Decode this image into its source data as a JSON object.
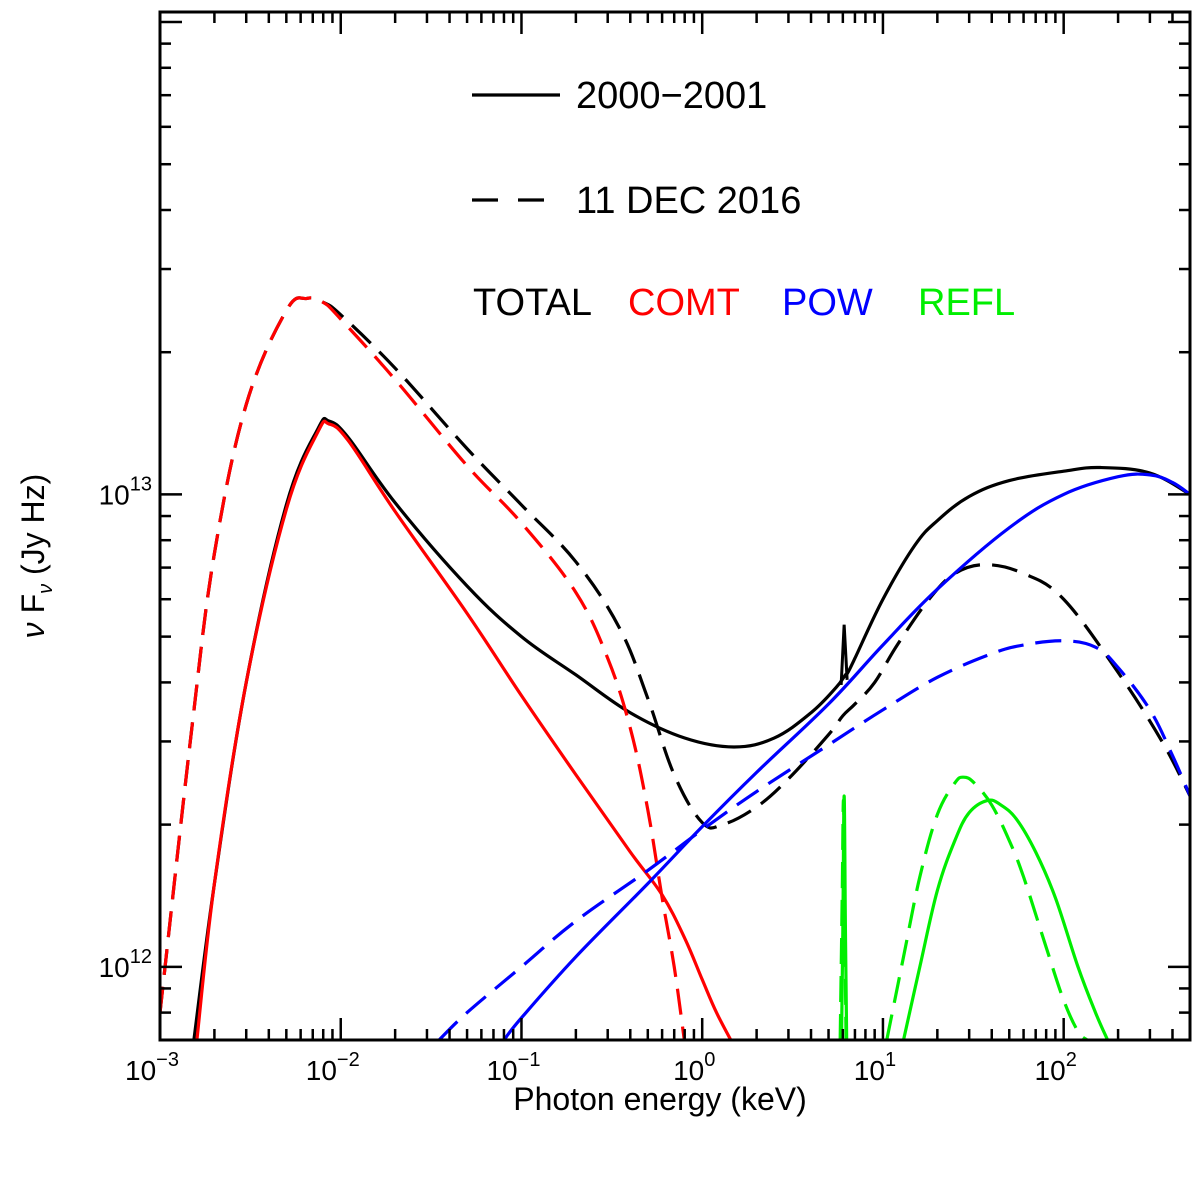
{
  "chart_data": {
    "type": "line",
    "title": "",
    "xlabel": "Photon energy (keV)",
    "ylabel": "ν F_ν (Jy Hz)",
    "ylabel_parts": {
      "nu": "ν",
      "F": "F",
      "sub": "ν",
      "units": "(Jy Hz)"
    },
    "xscale": "log",
    "yscale": "log",
    "xlim": [
      0.001,
      500
    ],
    "ylim": [
      700000000000.0,
      105000000000000.0
    ],
    "x_ticks": [
      {
        "value": 0.001,
        "base": "10",
        "exp": "−3"
      },
      {
        "value": 0.01,
        "base": "10",
        "exp": "−2"
      },
      {
        "value": 0.1,
        "base": "10",
        "exp": "−1"
      },
      {
        "value": 1,
        "base": "10",
        "exp": "0"
      },
      {
        "value": 10,
        "base": "10",
        "exp": "1"
      },
      {
        "value": 100,
        "base": "10",
        "exp": "2"
      }
    ],
    "y_ticks": [
      {
        "value": 1000000000000.0,
        "base": "10",
        "exp": "12"
      },
      {
        "value": 10000000000000.0,
        "base": "10",
        "exp": "13"
      }
    ],
    "legend": {
      "line_styles": [
        {
          "label": "2000−2001",
          "style": "solid"
        },
        {
          "label": "11 DEC 2016",
          "style": "dashed"
        }
      ],
      "components": [
        {
          "label": "TOTAL",
          "color": "#000000"
        },
        {
          "label": "COMT",
          "color": "#ff0000"
        },
        {
          "label": "POW",
          "color": "#0000ff"
        },
        {
          "label": "REFL",
          "color": "#00ee00"
        }
      ]
    },
    "series": [
      {
        "name": "TOTAL 2000−2001",
        "color": "#000000",
        "style": "solid",
        "x": [
          0.00154,
          0.002,
          0.003,
          0.005,
          0.0075,
          0.0086,
          0.011,
          0.02,
          0.05,
          0.1,
          0.2,
          0.4,
          0.8,
          1.5,
          2.5,
          4,
          5.5,
          6.2,
          6.4,
          7,
          10,
          15,
          20,
          30,
          50,
          100,
          160,
          300,
          500
        ],
        "y": [
          700000000000.0,
          1500000000000.0,
          4000000000000.0,
          9500000000000.0,
          13800000000000.0,
          14300000000000.0,
          13200000000000.0,
          9600000000000.0,
          6400000000000.0,
          5000000000000.0,
          4150000000000.0,
          3450000000000.0,
          3050000000000.0,
          2920000000000.0,
          3050000000000.0,
          3450000000000.0,
          3900000000000.0,
          4150000000000.0,
          4200000000000.0,
          4500000000000.0,
          6000000000000.0,
          7800000000000.0,
          8800000000000.0,
          9900000000000.0,
          10700000000000.0,
          11200000000000.0,
          11400000000000.0,
          11100000000000.0,
          10000000000000.0
        ]
      },
      {
        "name": "TOTAL 11 DEC 2016",
        "color": "#000000",
        "style": "dashed",
        "x": [
          0.001,
          0.0015,
          0.002,
          0.003,
          0.005,
          0.0065,
          0.008,
          0.01,
          0.02,
          0.05,
          0.1,
          0.2,
          0.35,
          0.5,
          0.7,
          1.0,
          1.3,
          2,
          3,
          5,
          6,
          7,
          9,
          12,
          18,
          25,
          37,
          60,
          100,
          200,
          350,
          500
        ],
        "y": [
          800000000000.0,
          3200000000000.0,
          7500000000000.0,
          15500000000000.0,
          24500000000000.0,
          26000000000000.0,
          25500000000000.0,
          24000000000000.0,
          18500000000000.0,
          12500000000000.0,
          9500000000000.0,
          7200000000000.0,
          5200000000000.0,
          3700000000000.0,
          2550000000000.0,
          2020000000000.0,
          2000000000000.0,
          2180000000000.0,
          2500000000000.0,
          3100000000000.0,
          3400000000000.0,
          3600000000000.0,
          4000000000000.0,
          4800000000000.0,
          6000000000000.0,
          6800000000000.0,
          7100000000000.0,
          6800000000000.0,
          6000000000000.0,
          4200000000000.0,
          3000000000000.0,
          2300000000000.0
        ]
      },
      {
        "name": "COMT 2000−2001",
        "color": "#ff0000",
        "style": "solid",
        "x": [
          0.0016,
          0.002,
          0.003,
          0.005,
          0.0075,
          0.0086,
          0.011,
          0.02,
          0.05,
          0.1,
          0.2,
          0.4,
          0.6,
          0.8,
          1.0,
          1.2,
          1.5
        ],
        "y": [
          700000000000.0,
          1500000000000.0,
          4000000000000.0,
          9300000000000.0,
          13600000000000.0,
          14100000000000.0,
          13000000000000.0,
          9200000000000.0,
          5600000000000.0,
          3750000000000.0,
          2550000000000.0,
          1750000000000.0,
          1420000000000.0,
          1150000000000.0,
          940000000000.0,
          800000000000.0,
          680000000000.0
        ]
      },
      {
        "name": "COMT 11 DEC 2016",
        "color": "#ff0000",
        "style": "dashed",
        "x": [
          0.001,
          0.0015,
          0.002,
          0.003,
          0.005,
          0.0065,
          0.008,
          0.01,
          0.02,
          0.05,
          0.1,
          0.2,
          0.3,
          0.4,
          0.5,
          0.6,
          0.7,
          0.8
        ],
        "y": [
          800000000000.0,
          3200000000000.0,
          7500000000000.0,
          15500000000000.0,
          24500000000000.0,
          26000000000000.0,
          25500000000000.0,
          23500000000000.0,
          17500000000000.0,
          11500000000000.0,
          8700000000000.0,
          6200000000000.0,
          4500000000000.0,
          3200000000000.0,
          2150000000000.0,
          1400000000000.0,
          1000000000000.0,
          690000000000.0
        ]
      },
      {
        "name": "POW 2000−2001",
        "color": "#0000ff",
        "style": "solid",
        "x": [
          0.08,
          0.1,
          0.2,
          0.5,
          1,
          2,
          5,
          10,
          20,
          50,
          100,
          200,
          300,
          400,
          500
        ],
        "y": [
          700000000000.0,
          780000000000.0,
          1050000000000.0,
          1500000000000.0,
          1980000000000.0,
          2580000000000.0,
          3600000000000.0,
          4800000000000.0,
          6300000000000.0,
          8500000000000.0,
          10000000000000.0,
          10900000000000.0,
          11000000000000.0,
          10600000000000.0,
          10000000000000.0
        ]
      },
      {
        "name": "POW 11 DEC 2016",
        "color": "#0000ff",
        "style": "dashed",
        "x": [
          0.035,
          0.05,
          0.1,
          0.2,
          0.5,
          1,
          2,
          5,
          10,
          20,
          40,
          60,
          100,
          150,
          200,
          300,
          400,
          500
        ],
        "y": [
          700000000000.0,
          800000000000.0,
          1000000000000.0,
          1250000000000.0,
          1600000000000.0,
          1950000000000.0,
          2350000000000.0,
          2950000000000.0,
          3500000000000.0,
          4100000000000.0,
          4600000000000.0,
          4800000000000.0,
          4900000000000.0,
          4750000000000.0,
          4300000000000.0,
          3500000000000.0,
          2800000000000.0,
          2300000000000.0
        ]
      },
      {
        "name": "REFL 2000−2001",
        "color": "#00ee00",
        "style": "solid",
        "x": [
          13,
          16,
          20,
          25,
          30,
          38,
          45,
          55,
          70,
          90,
          120,
          150,
          175
        ],
        "y": [
          700000000000.0,
          1000000000000.0,
          1450000000000.0,
          1850000000000.0,
          2120000000000.0,
          2250000000000.0,
          2200000000000.0,
          2050000000000.0,
          1750000000000.0,
          1400000000000.0,
          1000000000000.0,
          800000000000.0,
          700000000000.0
        ]
      },
      {
        "name": "REFL 11 DEC 2016",
        "color": "#00ee00",
        "style": "dashed",
        "x": [
          10.5,
          13,
          16,
          20,
          25,
          28,
          32,
          40,
          50,
          60,
          80,
          100,
          120,
          135
        ],
        "y": [
          700000000000.0,
          1050000000000.0,
          1550000000000.0,
          2100000000000.0,
          2450000000000.0,
          2520000000000.0,
          2450000000000.0,
          2200000000000.0,
          1850000000000.0,
          1550000000000.0,
          1100000000000.0,
          850000000000.0,
          730000000000.0,
          700000000000.0
        ]
      },
      {
        "name": "REFL Fe line 2000−2001",
        "color": "#00ee00",
        "style": "solid",
        "x": [
          5.9,
          6.0,
          6.1,
          6.2,
          6.3
        ],
        "y": [
          700000000000.0,
          1200000000000.0,
          2300000000000.0,
          1200000000000.0,
          700000000000.0
        ]
      },
      {
        "name": "REFL Fe line 11 DEC 2016",
        "color": "#00ee00",
        "style": "dashed",
        "x": [
          5.8,
          5.95,
          6.05,
          6.15,
          6.25
        ],
        "y": [
          700000000000.0,
          1400000000000.0,
          2250000000000.0,
          1300000000000.0,
          700000000000.0
        ]
      }
    ]
  }
}
